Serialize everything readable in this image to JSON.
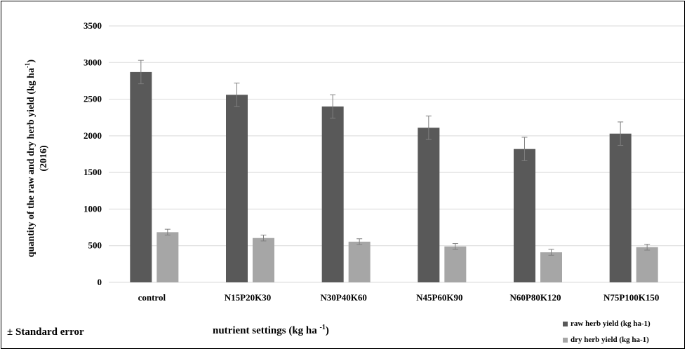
{
  "colors": {
    "raw": "#595959",
    "dry": "#a6a6a6",
    "grid": "#d9d9d9",
    "error_bar": "#7f7f7f"
  },
  "chart_data": {
    "type": "bar",
    "categories": [
      "control",
      "N15P20K30",
      "N30P40K60",
      "N45P60K90",
      "N60P80K120",
      "N75P100K150"
    ],
    "series": [
      {
        "name": "raw herb yield (kg ha-1)",
        "values": [
          2870,
          2560,
          2400,
          2110,
          1820,
          2030
        ],
        "errors": [
          160,
          160,
          160,
          160,
          160,
          160
        ]
      },
      {
        "name": "dry herb yield (kg ha-1)",
        "values": [
          685,
          605,
          555,
          490,
          410,
          480
        ],
        "errors": [
          40,
          40,
          40,
          40,
          40,
          40
        ]
      }
    ],
    "ylim": [
      0,
      3500
    ],
    "yticks": [
      "0",
      "500",
      "1000",
      "1500",
      "2000",
      "2500",
      "3000",
      "3500"
    ],
    "ylabel_line1": "quantity of the raw and dry herb yield (kg ha",
    "ylabel_line1_sup": "-1",
    "ylabel_line1_end": ")",
    "ylabel_line2": "(2016)",
    "xlabel_main": "nutrient settings (kg ha ",
    "xlabel_sup": "-1",
    "xlabel_end": ")",
    "footnote": "± Standard error",
    "legend": "bottom-right",
    "grid": true
  }
}
